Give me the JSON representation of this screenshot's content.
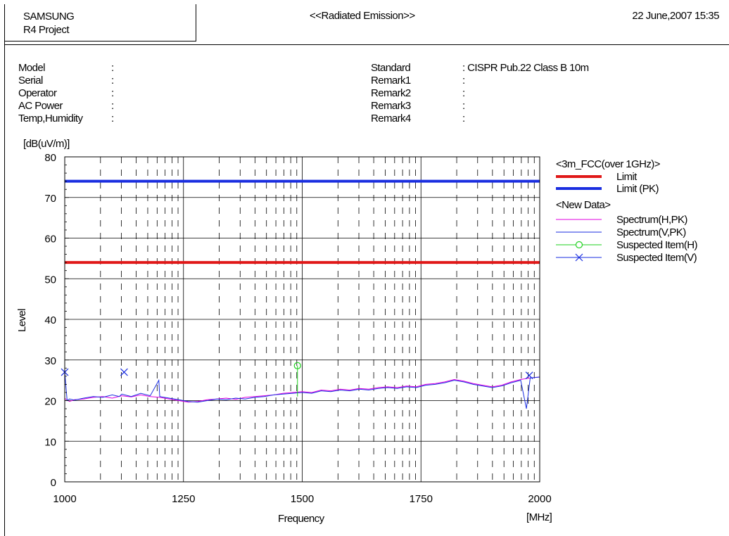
{
  "header": {
    "company": "SAMSUNG",
    "project": "R4 Project",
    "title": "<<Radiated Emission>>",
    "date": "22 June,2007 15:35"
  },
  "info_left": [
    {
      "label": "Model",
      "value": ""
    },
    {
      "label": "Serial",
      "value": ""
    },
    {
      "label": "Operator",
      "value": ""
    },
    {
      "label": "AC Power",
      "value": ""
    },
    {
      "label": "Temp,Humidity",
      "value": ""
    }
  ],
  "info_right": [
    {
      "label": "Standard",
      "value": "CISPR Pub.22 Class B 10m"
    },
    {
      "label": "Remark1",
      "value": ""
    },
    {
      "label": "Remark2",
      "value": ""
    },
    {
      "label": "Remark3",
      "value": ""
    },
    {
      "label": "Remark4",
      "value": ""
    }
  ],
  "colon": ":",
  "chart_data": {
    "type": "line",
    "title": "",
    "xlabel": "Frequency",
    "xunit": "[MHz]",
    "ylabel": "Level",
    "yunit": "[dB(uV/m)]",
    "xlim": [
      1000,
      2000
    ],
    "ylim": [
      0,
      80
    ],
    "x_ticks": [
      1000,
      1250,
      1500,
      1750,
      2000
    ],
    "y_ticks": [
      0,
      10,
      20,
      30,
      40,
      50,
      60,
      70,
      80
    ],
    "legend": {
      "title1": "<3m_FCC(over 1GHz)>",
      "title2": "<New Data>",
      "placement": "right"
    },
    "limits": [
      {
        "name": "Limit",
        "value": 54,
        "color": "#e01818"
      },
      {
        "name": "Limit (PK)",
        "value": 74,
        "color": "#1a2ee0"
      }
    ],
    "series": [
      {
        "name": "Spectrum(H,PK)",
        "color": "#e000e0",
        "x": [
          1000,
          1010,
          1020,
          1040,
          1060,
          1080,
          1100,
          1120,
          1140,
          1160,
          1180,
          1200,
          1220,
          1240,
          1260,
          1280,
          1300,
          1320,
          1340,
          1360,
          1380,
          1400,
          1420,
          1440,
          1460,
          1480,
          1500,
          1520,
          1540,
          1560,
          1580,
          1600,
          1620,
          1640,
          1660,
          1680,
          1700,
          1720,
          1740,
          1760,
          1780,
          1800,
          1820,
          1840,
          1860,
          1880,
          1900,
          1920,
          1940,
          1960,
          1980,
          2000
        ],
        "y": [
          20.5,
          19.8,
          20.2,
          20.4,
          20.8,
          21.0,
          20.6,
          21.2,
          20.9,
          21.4,
          21.0,
          20.8,
          20.4,
          20.0,
          19.6,
          19.8,
          20.2,
          20.4,
          20.6,
          20.3,
          20.8,
          21.0,
          21.2,
          21.4,
          21.8,
          22.0,
          22.2,
          22.0,
          22.6,
          22.4,
          22.8,
          22.6,
          23.0,
          22.8,
          23.2,
          23.4,
          23.2,
          23.6,
          23.4,
          24.0,
          24.2,
          24.6,
          25.2,
          24.8,
          24.2,
          23.8,
          23.4,
          23.8,
          24.6,
          25.2,
          25.6,
          25.8
        ]
      },
      {
        "name": "Spectrum(V,PK)",
        "color": "#1a2ee0",
        "x": [
          1000,
          1005,
          1010,
          1020,
          1040,
          1060,
          1080,
          1100,
          1115,
          1120,
          1140,
          1160,
          1180,
          1198,
          1200,
          1220,
          1240,
          1260,
          1280,
          1300,
          1320,
          1340,
          1360,
          1380,
          1400,
          1420,
          1440,
          1460,
          1480,
          1500,
          1520,
          1540,
          1560,
          1580,
          1600,
          1620,
          1640,
          1660,
          1680,
          1700,
          1720,
          1740,
          1760,
          1780,
          1800,
          1820,
          1840,
          1860,
          1880,
          1900,
          1920,
          1940,
          1960,
          1972,
          1980,
          2000
        ],
        "y": [
          27.0,
          20.0,
          20.4,
          20.1,
          20.6,
          21.0,
          20.8,
          21.4,
          21.0,
          21.6,
          21.0,
          21.8,
          21.2,
          25.0,
          21.0,
          20.6,
          20.2,
          19.8,
          19.6,
          20.0,
          20.4,
          20.2,
          20.6,
          20.4,
          20.8,
          21.0,
          21.4,
          21.6,
          21.8,
          22.0,
          21.8,
          22.4,
          22.2,
          22.6,
          22.4,
          22.8,
          22.6,
          23.0,
          23.2,
          23.0,
          23.4,
          23.2,
          23.8,
          24.0,
          24.4,
          25.0,
          24.6,
          24.0,
          23.6,
          23.2,
          23.6,
          24.4,
          25.0,
          18.0,
          25.6,
          25.8
        ]
      }
    ],
    "markers": [
      {
        "name": "Suspected Item(H)",
        "symbol": "circle",
        "color": "#1ed01e",
        "x": 1490,
        "y": 28.6
      },
      {
        "name": "Suspected Item(V)",
        "symbol": "x",
        "color": "#1a2ee0",
        "points": [
          [
            1000,
            27.0
          ],
          [
            1125,
            27.0
          ],
          [
            1978,
            26.2
          ]
        ]
      }
    ],
    "grid": true
  }
}
